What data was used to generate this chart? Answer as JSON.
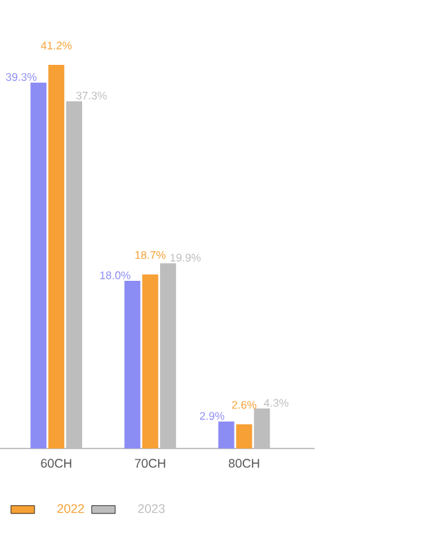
{
  "chart_data": {
    "type": "bar",
    "categories": [
      "60CH",
      "70CH",
      "80CH"
    ],
    "legend": "bottom",
    "series": [
      {
        "color": "#8c8cf5",
        "values": [
          39.3,
          18.0,
          2.9
        ],
        "value_labels": [
          "39.3%",
          "18.0%",
          "2.9%"
        ]
      },
      {
        "name": "2022",
        "color": "#f7a035",
        "values": [
          41.2,
          18.7,
          2.6
        ],
        "value_labels": [
          "41.2%",
          "18.7%",
          "2.6%"
        ]
      },
      {
        "name": "2023",
        "color": "#bdbdbd",
        "values": [
          37.3,
          19.9,
          4.3
        ],
        "value_labels": [
          "37.3%",
          "19.9%",
          "4.3%"
        ]
      }
    ]
  }
}
